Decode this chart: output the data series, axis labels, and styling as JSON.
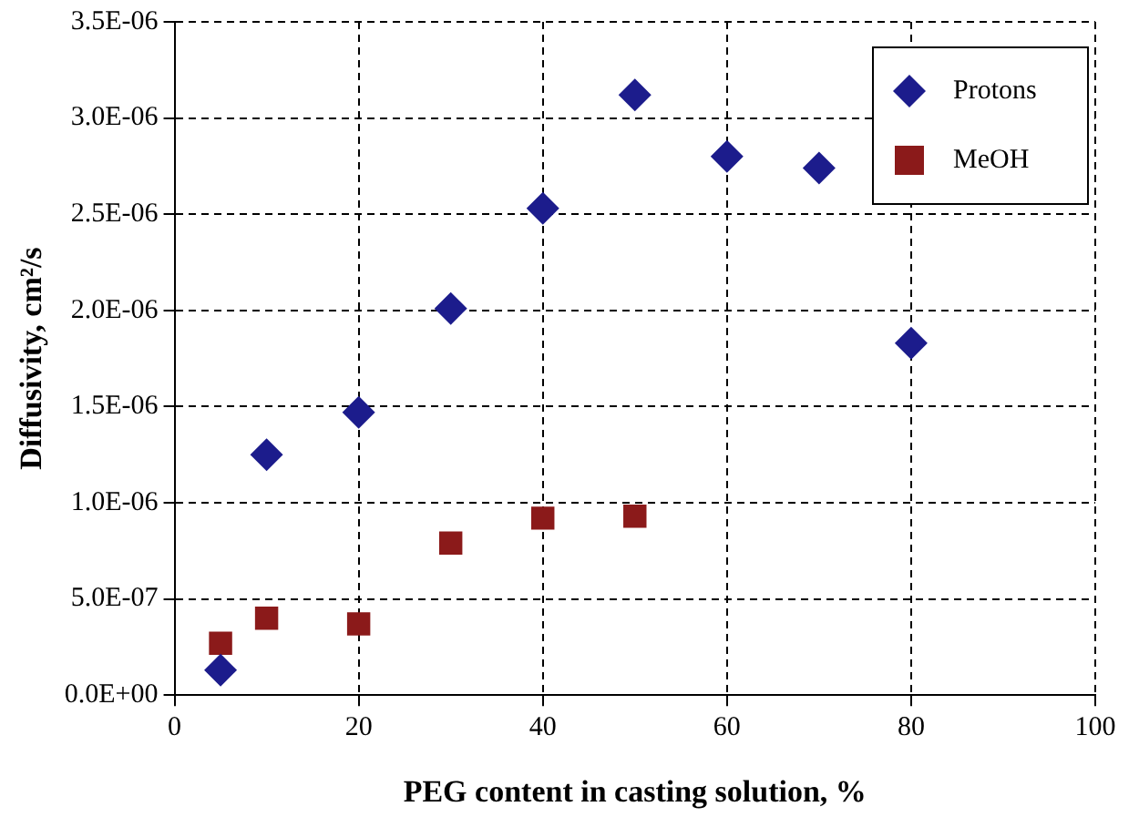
{
  "chart_data": {
    "type": "scatter",
    "xlabel": "PEG content in casting solution, %",
    "ylabel": "Diffusivity, cm²/s",
    "xlim": [
      0,
      100
    ],
    "xticks": [
      0,
      20,
      40,
      60,
      80,
      100
    ],
    "ylim": [
      0,
      3.5e-06
    ],
    "yticks": [
      {
        "value": 0,
        "label": "0.0E+00"
      },
      {
        "value": 5e-07,
        "label": "5.0E-07"
      },
      {
        "value": 1e-06,
        "label": "1.0E-06"
      },
      {
        "value": 1.5e-06,
        "label": "1.5E-06"
      },
      {
        "value": 2e-06,
        "label": "2.0E-06"
      },
      {
        "value": 2.5e-06,
        "label": "2.5E-06"
      },
      {
        "value": 3e-06,
        "label": "3.0E-06"
      },
      {
        "value": 3.5e-06,
        "label": "3.5E-06"
      }
    ],
    "grid": true,
    "legend": "top right",
    "series": [
      {
        "name": "Protons",
        "color": "#1c1c8c",
        "marker": "diamond",
        "x": [
          5,
          10,
          20,
          30,
          40,
          50,
          60,
          70,
          80
        ],
        "values": [
          1.3e-07,
          1.25e-06,
          1.47e-06,
          2.01e-06,
          2.53e-06,
          3.12e-06,
          2.8e-06,
          2.74e-06,
          1.83e-06
        ]
      },
      {
        "name": "MeOH",
        "color": "#8b1a1a",
        "marker": "square",
        "x": [
          5,
          10,
          20,
          30,
          40,
          50
        ],
        "values": [
          2.7e-07,
          4e-07,
          3.7e-07,
          7.9e-07,
          9.2e-07,
          9.3e-07
        ]
      }
    ]
  }
}
